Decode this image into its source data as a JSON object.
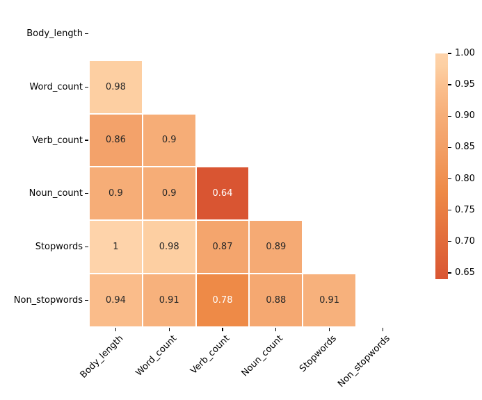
{
  "chart_data": {
    "type": "heatmap",
    "title": "",
    "description": "Lower-triangle correlation matrix heatmap with masked diagonal and upper triangle",
    "categories": [
      "Body_length",
      "Word_count",
      "Verb_count",
      "Noun_count",
      "Stopwords",
      "Non_stopwords"
    ],
    "matrix": [
      [
        null,
        null,
        null,
        null,
        null,
        null
      ],
      [
        0.98,
        null,
        null,
        null,
        null,
        null
      ],
      [
        0.86,
        0.9,
        null,
        null,
        null,
        null
      ],
      [
        0.9,
        0.9,
        0.64,
        null,
        null,
        null
      ],
      [
        1,
        0.98,
        0.87,
        0.89,
        null,
        null
      ],
      [
        0.94,
        0.91,
        0.78,
        0.88,
        0.91,
        null
      ]
    ],
    "annotations": [
      [
        "",
        "",
        "",
        "",
        "",
        ""
      ],
      [
        "0.98",
        "",
        "",
        "",
        "",
        ""
      ],
      [
        "0.86",
        "0.9",
        "",
        "",
        "",
        ""
      ],
      [
        "0.9",
        "0.9",
        "0.64",
        "",
        "",
        ""
      ],
      [
        "1",
        "0.98",
        "0.87",
        "0.89",
        "",
        ""
      ],
      [
        "0.94",
        "0.91",
        "0.78",
        "0.88",
        "0.91",
        ""
      ]
    ],
    "masked": "upper-triangle-and-diagonal",
    "legend_position": "right",
    "grid": false,
    "colorbar": {
      "vmin": 0.64,
      "vmax": 1.0,
      "tick_labels": [
        "1.00",
        "0.95",
        "0.90",
        "0.85",
        "0.80",
        "0.75",
        "0.70",
        "0.65"
      ],
      "tick_values": [
        1.0,
        0.95,
        0.9,
        0.85,
        0.8,
        0.75,
        0.7,
        0.65
      ]
    },
    "colormap_stops": [
      {
        "value": 0.64,
        "color": "#d95532"
      },
      {
        "value": 0.78,
        "color": "#ee8a47"
      },
      {
        "value": 0.86,
        "color": "#f3a26a"
      },
      {
        "value": 0.9,
        "color": "#f6ad77"
      },
      {
        "value": 0.94,
        "color": "#fabc8a"
      },
      {
        "value": 0.98,
        "color": "#fdcfa2"
      },
      {
        "value": 1.0,
        "color": "#fed3aa"
      }
    ],
    "annotation_text_dark": "#262626",
    "annotation_text_light": "#ffffff",
    "background": "#ffffff"
  }
}
